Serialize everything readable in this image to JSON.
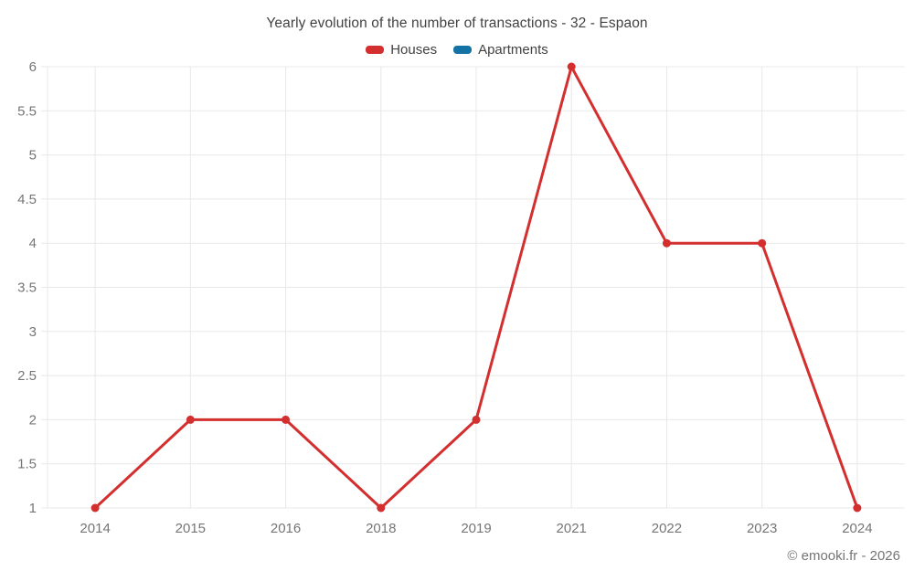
{
  "header": {
    "title": "Yearly evolution of the number of transactions - 32 - Espaon"
  },
  "legend": [
    {
      "label": "Houses",
      "color": "#d32f2f"
    },
    {
      "label": "Apartments",
      "color": "#1373a5"
    }
  ],
  "footer": {
    "credit": "© emooki.fr - 2026"
  },
  "chart_data": {
    "type": "line",
    "title": "Yearly evolution of the number of transactions - 32 - Espaon",
    "categories": [
      "2014",
      "2015",
      "2016",
      "2018",
      "2019",
      "2021",
      "2022",
      "2023",
      "2024"
    ],
    "series": [
      {
        "name": "Houses",
        "color": "#d32f2f",
        "values": [
          1,
          2,
          2,
          1,
          2,
          6,
          4,
          4,
          1
        ]
      },
      {
        "name": "Apartments",
        "color": "#1373a5",
        "values": []
      }
    ],
    "xlabel": "",
    "ylabel": "",
    "ylim": [
      1,
      6
    ],
    "ytick_step": 0.5,
    "grid": true,
    "legend_position": "top",
    "grid_color": "#e8e8e8",
    "tick_label_color": "#757575",
    "marker_radius": 4.5,
    "line_width": 3
  }
}
